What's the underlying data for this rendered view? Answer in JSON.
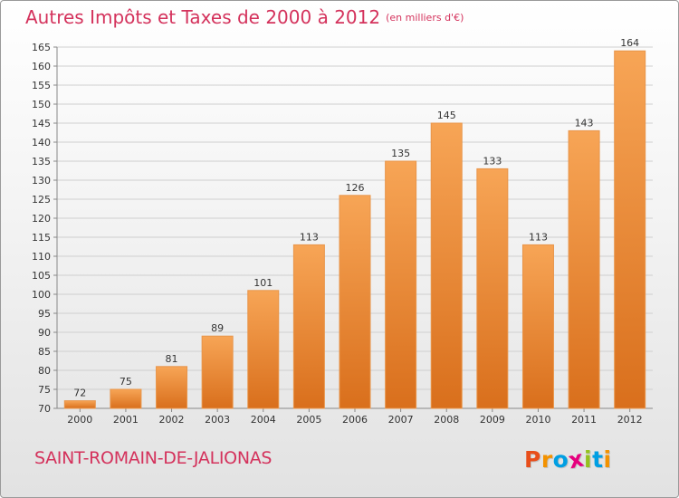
{
  "title": "Autres Impôts et Taxes de 2000 à 2012",
  "unit": "(en milliers d'€)",
  "commune": "SAINT-ROMAIN-DE-JALIONAS",
  "logo": {
    "text": "Proxiti",
    "letters": [
      {
        "ch": "P",
        "color": "#e84e1b"
      },
      {
        "ch": "r",
        "color": "#f39200"
      },
      {
        "ch": "o",
        "color": "#009fe3"
      },
      {
        "ch": "x",
        "color": "#e6007e"
      },
      {
        "ch": "i",
        "color": "#95c11f"
      },
      {
        "ch": "t",
        "color": "#009fe3"
      },
      {
        "ch": "i",
        "color": "#f39200"
      }
    ]
  },
  "colors": {
    "title": "#d4325c",
    "bar_light": "#f7a556",
    "bar_dark": "#d96f1c",
    "grid": "#cfcfcf"
  },
  "chart_data": {
    "type": "bar",
    "categories": [
      "2000",
      "2001",
      "2002",
      "2003",
      "2004",
      "2005",
      "2006",
      "2007",
      "2008",
      "2009",
      "2010",
      "2011",
      "2012"
    ],
    "values": [
      72,
      75,
      81,
      89,
      101,
      113,
      126,
      135,
      145,
      133,
      113,
      143,
      164
    ],
    "ylim": [
      70,
      165
    ],
    "yticks": [
      70,
      75,
      80,
      85,
      90,
      95,
      100,
      105,
      110,
      115,
      120,
      125,
      130,
      135,
      140,
      145,
      150,
      155,
      160,
      165
    ],
    "grid": true,
    "data_labels": true
  }
}
